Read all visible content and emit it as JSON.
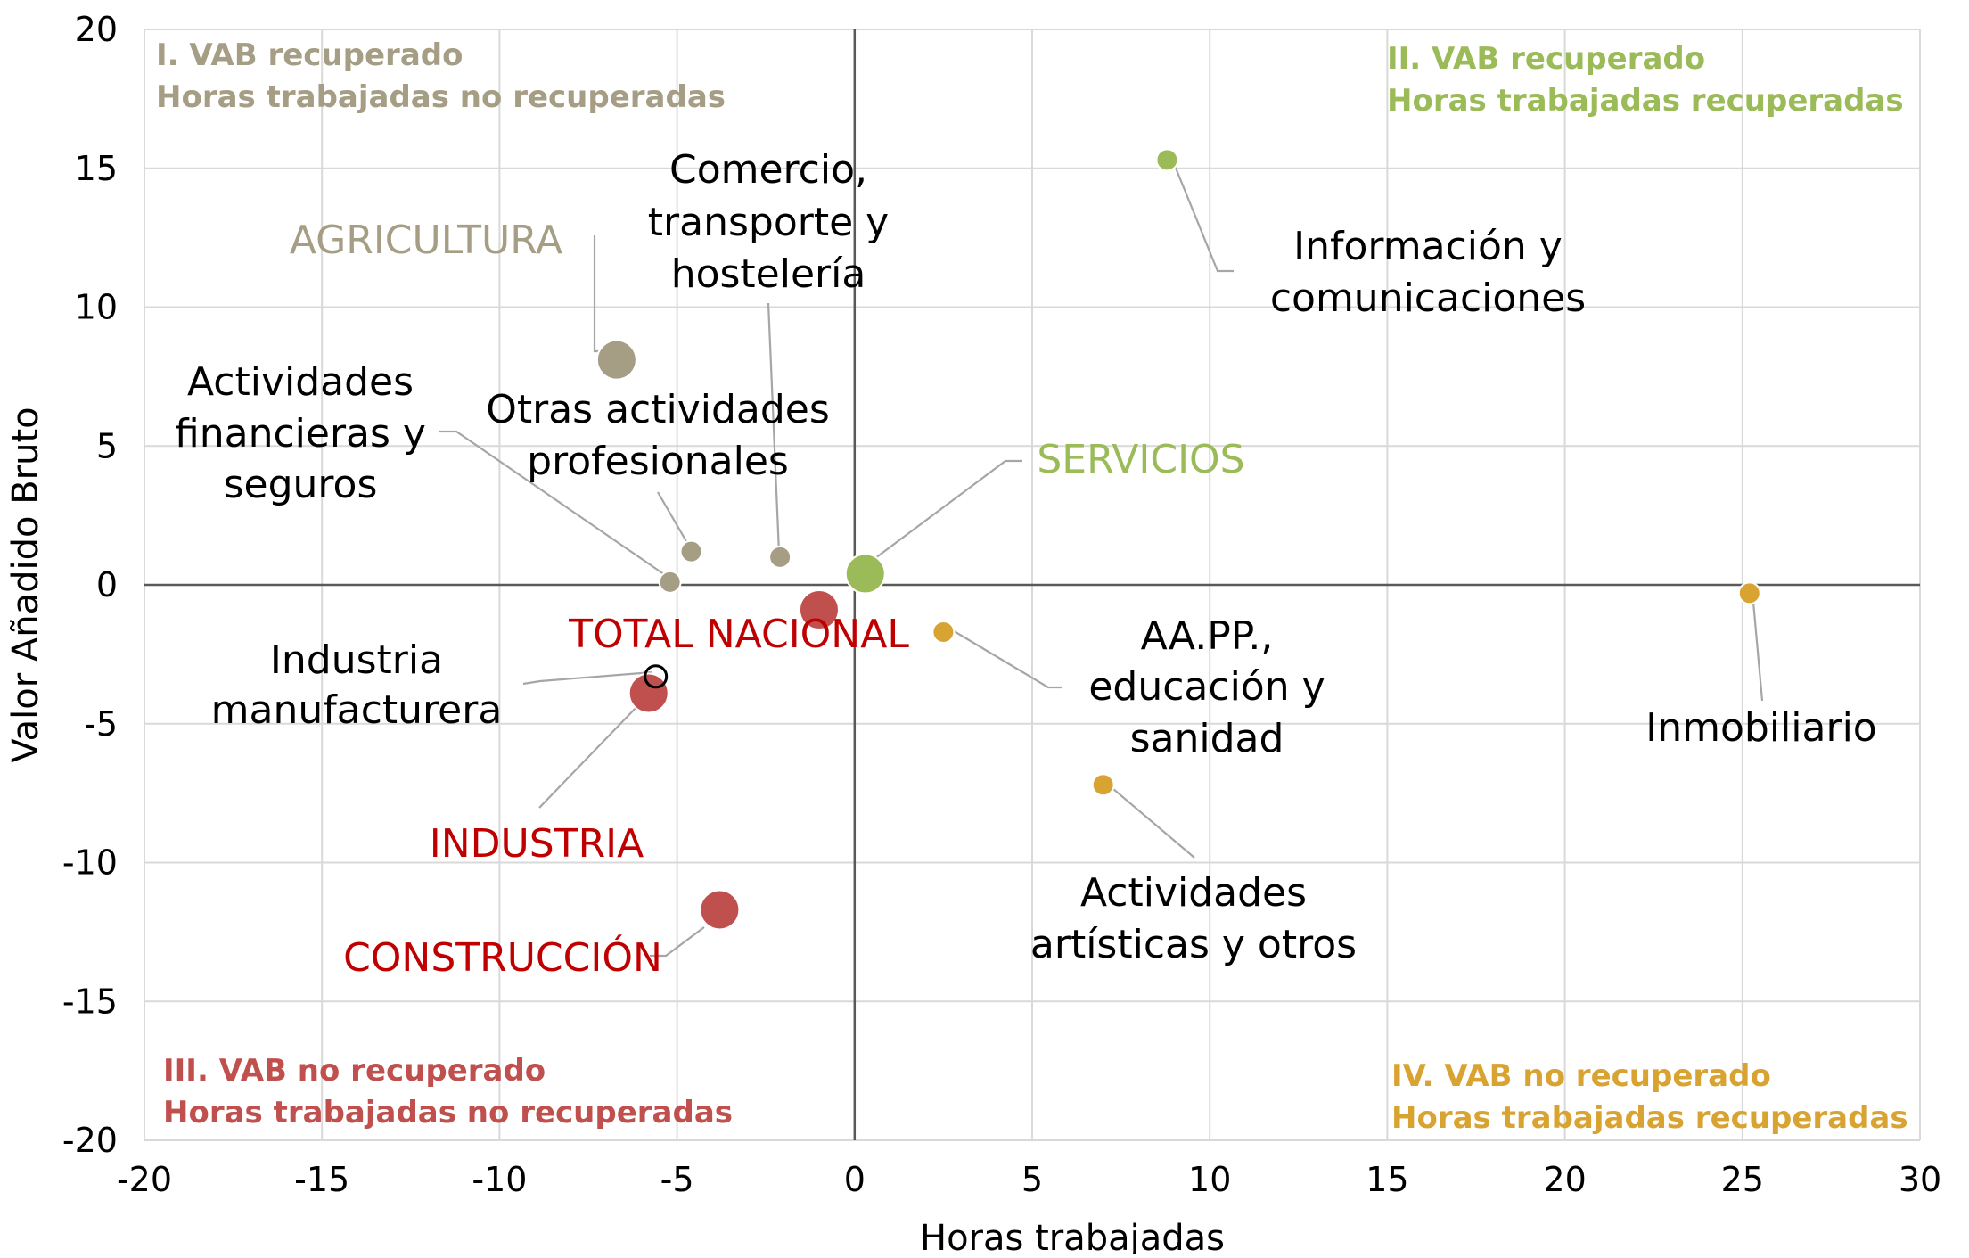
{
  "chart_data": {
    "type": "scatter",
    "xlabel": "Horas trabajadas",
    "ylabel": "Valor Añadido Bruto",
    "xlim": [
      -20,
      30
    ],
    "ylim": [
      -20,
      20
    ],
    "x_ticks": [
      -20,
      -15,
      -10,
      -5,
      0,
      5,
      10,
      15,
      20,
      25,
      30
    ],
    "y_ticks": [
      20,
      15,
      10,
      5,
      0,
      -5,
      -10,
      -15,
      -20
    ],
    "grid": true,
    "colors": {
      "agricultura": "#a59d84",
      "servicios_verde": "#9bbb59",
      "industria_rojo": "#c0504d",
      "inmobiliario_naranja": "#d9a331",
      "label_rojo": "#c00000",
      "label_agricultura": "#a59d84",
      "label_servicios": "#9bbb59",
      "quadrant_I": "#a59d84",
      "quadrant_II": "#9bbb59",
      "quadrant_III": "#c0504d",
      "quadrant_IV": "#d9a331",
      "grid": "#d9d9d9",
      "axis": "#595959"
    },
    "quadrant_labels": [
      {
        "id": "q1",
        "lines": [
          "I. VAB recuperado",
          "Horas trabajadas no recuperadas"
        ],
        "color_key": "quadrant_I",
        "corner": "top-left"
      },
      {
        "id": "q2",
        "lines": [
          "II. VAB recuperado",
          "Horas trabajadas recuperadas"
        ],
        "color_key": "quadrant_II",
        "corner": "top-right"
      },
      {
        "id": "q3",
        "lines": [
          "III. VAB no recuperado",
          "Horas trabajadas no recuperadas"
        ],
        "color_key": "quadrant_III",
        "corner": "bottom-left"
      },
      {
        "id": "q4",
        "lines": [
          "IV. VAB no recuperado",
          "Horas trabajadas recuperadas"
        ],
        "color_key": "quadrant_IV",
        "corner": "bottom-right"
      }
    ],
    "points": [
      {
        "id": "agricultura",
        "label": "AGRICULTURA",
        "x": -6.7,
        "y": 8.1,
        "size": "large",
        "color_key": "agricultura",
        "label_color_key": "label_agricultura"
      },
      {
        "id": "servicios",
        "label": "SERVICIOS",
        "x": 0.3,
        "y": 0.4,
        "size": "large",
        "color_key": "servicios_verde",
        "label_color_key": "label_servicios"
      },
      {
        "id": "total_nacional",
        "label": "TOTAL NACIONAL",
        "x": -1.0,
        "y": -0.9,
        "size": "large",
        "color_key": "industria_rojo",
        "label_color_key": "label_rojo"
      },
      {
        "id": "industria",
        "label": "INDUSTRIA",
        "x": -5.8,
        "y": -3.9,
        "size": "large",
        "color_key": "industria_rojo",
        "label_color_key": "label_rojo"
      },
      {
        "id": "construccion",
        "label": "CONSTRUCCIÓN",
        "x": -3.8,
        "y": -11.7,
        "size": "large",
        "color_key": "industria_rojo",
        "label_color_key": "label_rojo"
      },
      {
        "id": "informacion",
        "label": "Información y comunicaciones",
        "x": 8.8,
        "y": 15.3,
        "size": "small",
        "color_key": "servicios_verde",
        "label_color_key": null
      },
      {
        "id": "comercio",
        "label": "Comercio, transporte y hostelería",
        "x": -2.1,
        "y": 1.0,
        "size": "small",
        "color_key": "agricultura",
        "label_color_key": null
      },
      {
        "id": "financieras",
        "label": "Actividades financieras y seguros",
        "x": -5.2,
        "y": 0.1,
        "size": "small",
        "color_key": "agricultura",
        "label_color_key": null
      },
      {
        "id": "profesionales",
        "label": "Otras actividades profesionales",
        "x": -4.6,
        "y": 1.2,
        "size": "small",
        "color_key": "agricultura",
        "label_color_key": null
      },
      {
        "id": "manufacturera",
        "label": "Industria manufacturera",
        "x": -5.6,
        "y": -3.3,
        "size": "small",
        "color_key": "industria_rojo",
        "label_color_key": null,
        "outline": true
      },
      {
        "id": "aapp",
        "label": "AA.PP., educación y sanidad",
        "x": 2.5,
        "y": -1.7,
        "size": "small",
        "color_key": "inmobiliario_naranja",
        "label_color_key": null
      },
      {
        "id": "artisticas",
        "label": "Actividades artísticas y otros",
        "x": 7.0,
        "y": -7.2,
        "size": "small",
        "color_key": "inmobiliario_naranja",
        "label_color_key": null
      },
      {
        "id": "inmobiliario",
        "label": "Inmobiliario",
        "x": 25.2,
        "y": -0.3,
        "size": "small",
        "color_key": "inmobiliario_naranja",
        "label_color_key": null
      }
    ]
  }
}
